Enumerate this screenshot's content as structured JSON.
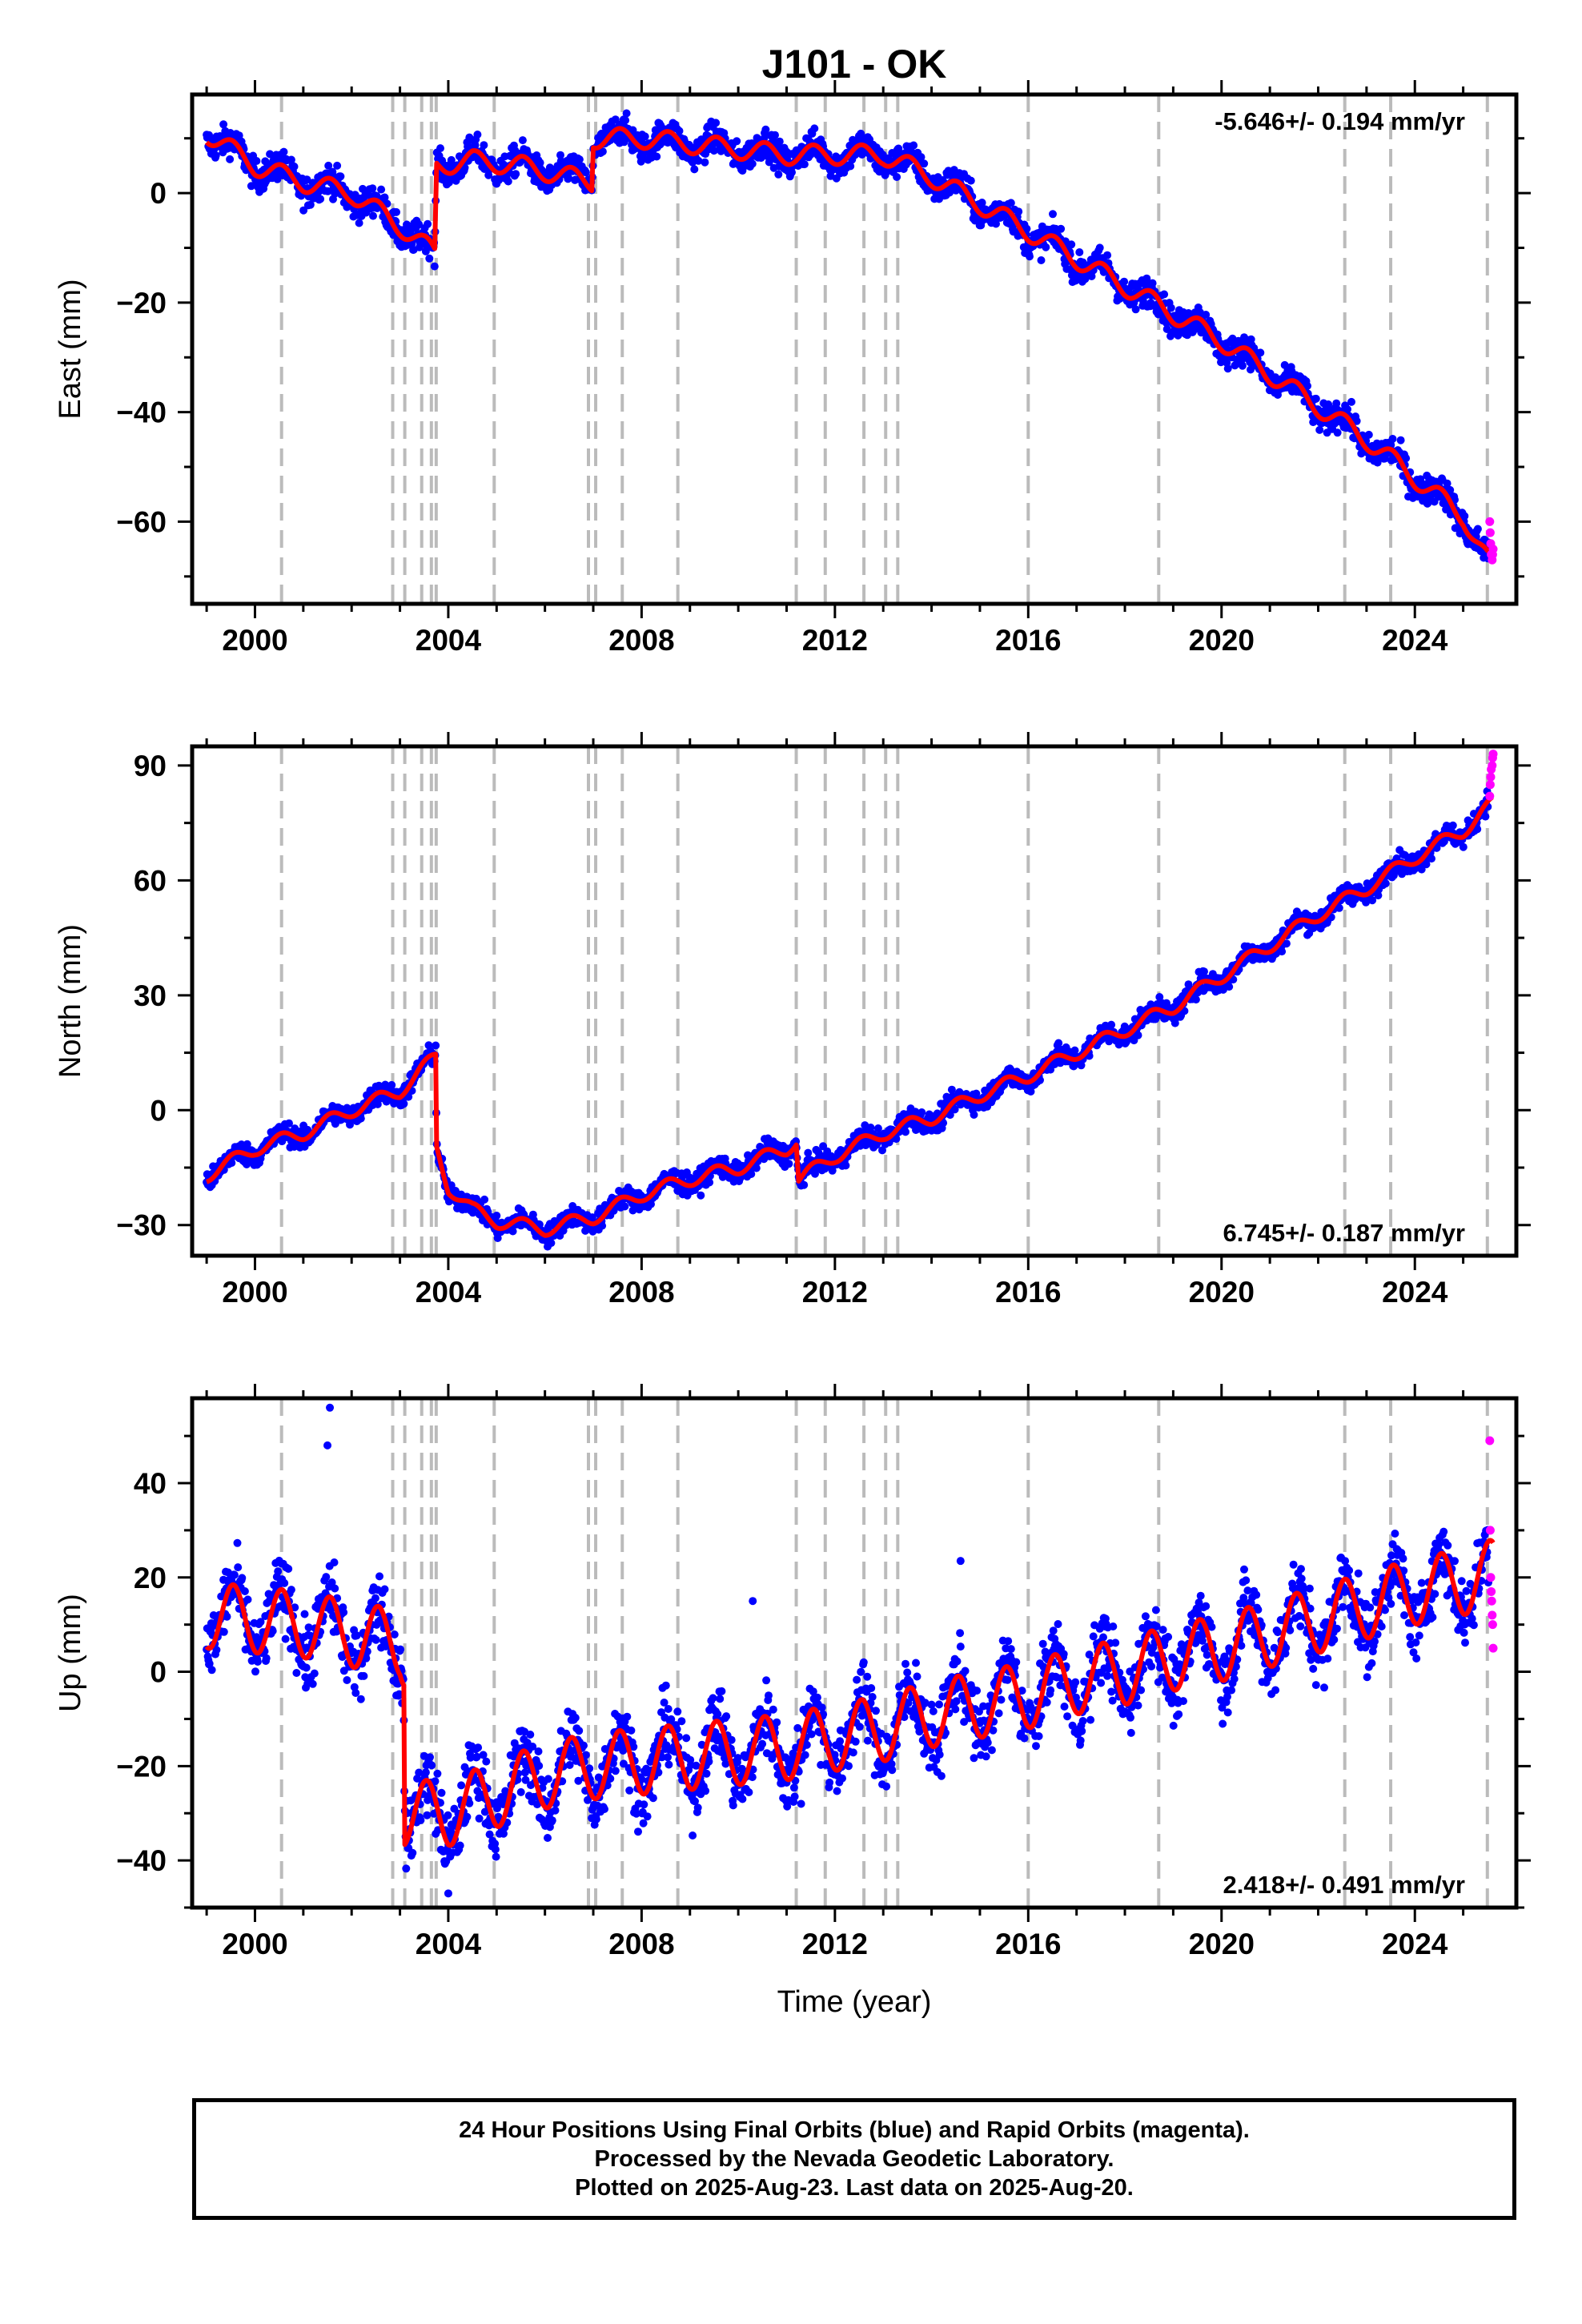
{
  "title": "J101 - OK",
  "footer": {
    "line1": "24 Hour Positions Using Final Orbits (blue) and Rapid Orbits (magenta).",
    "line2": "Processed by the Nevada Geodetic Laboratory.",
    "line3": "Plotted on 2025-Aug-23. Last data on 2025-Aug-20."
  },
  "colors": {
    "final_orbits": "#0000ff",
    "rapid_orbits": "#ff00ff",
    "model_fit": "#ff0000",
    "event_lines": "#bbbbbb"
  },
  "chart_data": [
    {
      "type": "scatter",
      "panel": "east",
      "ylabel": "East (mm)",
      "xlabel": "",
      "xlim": [
        1998.7,
        2026.1
      ],
      "ylim": [
        -75,
        18
      ],
      "yticks": [
        0,
        -20,
        -40,
        -60
      ],
      "xticks": [
        2000,
        2004,
        2008,
        2012,
        2016,
        2020,
        2024
      ],
      "rate_label": "-5.646+/- 0.194 mm/yr",
      "rate_position": "top-right",
      "event_lines": [
        2000.55,
        2002.85,
        2003.1,
        2003.45,
        2003.65,
        2003.75,
        2004.95,
        2006.9,
        2007.05,
        2007.6,
        2008.75,
        2011.2,
        2011.8,
        2012.6,
        2013.05,
        2013.3,
        2016.0,
        2018.7,
        2022.55,
        2023.5,
        2025.5
      ],
      "series": [
        {
          "name": "Final Orbits",
          "style": "points",
          "trend_x": [
            1999.0,
            2000.0,
            2001.0,
            2002.0,
            2003.0,
            2003.72,
            2003.76,
            2004.5,
            2005.5,
            2006.5,
            2006.97,
            2007.0,
            2008.0,
            2009.0,
            2010.0,
            2011.0,
            2012.0,
            2013.0,
            2014.0,
            2015.0,
            2016.0,
            2017.0,
            2018.0,
            2019.0,
            2020.0,
            2021.0,
            2022.0,
            2023.0,
            2024.0,
            2025.0,
            2025.5
          ],
          "trend_y": [
            11,
            5,
            2,
            0,
            -6,
            -11,
            5,
            6,
            5,
            3,
            2,
            10,
            10,
            9,
            8,
            7,
            7,
            7,
            3,
            -2,
            -7,
            -12,
            -17,
            -22,
            -27,
            -33,
            -39,
            -45,
            -52,
            -59,
            -67
          ],
          "spread": 2.6
        },
        {
          "name": "Rapid Orbits",
          "style": "points",
          "x": [
            2025.55,
            2025.56,
            2025.57,
            2025.58,
            2025.6,
            2025.61,
            2025.62
          ],
          "y": [
            -60,
            -62,
            -64,
            -66,
            -67,
            -66,
            -65
          ]
        },
        {
          "name": "Model",
          "style": "line",
          "offsets": [
            {
              "x": 2003.74,
              "dy": 16
            },
            {
              "x": 2006.99,
              "dy": 8
            }
          ],
          "seasonal_amplitude": 1.8
        }
      ]
    },
    {
      "type": "scatter",
      "panel": "north",
      "ylabel": "North (mm)",
      "xlabel": "",
      "xlim": [
        1998.7,
        2026.1
      ],
      "ylim": [
        -38,
        95
      ],
      "yticks": [
        90,
        60,
        30,
        0,
        -30
      ],
      "xticks": [
        2000,
        2004,
        2008,
        2012,
        2016,
        2020,
        2024
      ],
      "rate_label": "6.745+/- 0.187 mm/yr",
      "rate_position": "bottom-right",
      "event_lines": [
        2000.55,
        2002.85,
        2003.1,
        2003.45,
        2003.65,
        2003.75,
        2004.95,
        2006.9,
        2007.05,
        2007.6,
        2008.75,
        2011.2,
        2011.8,
        2012.6,
        2013.05,
        2013.3,
        2016.0,
        2018.7,
        2022.55,
        2023.5,
        2025.5
      ],
      "series": [
        {
          "name": "Final Orbits",
          "style": "points",
          "trend_x": [
            1999.0,
            2000.0,
            2001.0,
            2002.0,
            2003.0,
            2003.74,
            2003.76,
            2004.0,
            2004.5,
            2005.0,
            2006.0,
            2007.0,
            2008.0,
            2009.0,
            2010.0,
            2011.0,
            2011.2,
            2011.25,
            2012.0,
            2013.0,
            2014.0,
            2015.0,
            2016.0,
            2017.0,
            2018.0,
            2019.0,
            2020.0,
            2021.0,
            2022.0,
            2023.0,
            2024.0,
            2025.0,
            2025.6
          ],
          "trend_y": [
            -17,
            -10,
            -6,
            0,
            5,
            14,
            -10,
            -20,
            -26,
            -29,
            -31,
            -28,
            -22,
            -18,
            -15,
            -10,
            -8,
            -18,
            -12,
            -6,
            -2,
            4,
            9,
            15,
            21,
            27,
            35,
            43,
            51,
            58,
            66,
            73,
            80
          ],
          "spread": 2.6
        },
        {
          "name": "Rapid Orbits",
          "style": "points",
          "x": [
            2025.55,
            2025.56,
            2025.57,
            2025.58,
            2025.6,
            2025.61,
            2025.62
          ],
          "y": [
            82,
            85,
            87,
            89,
            90,
            92,
            93
          ]
        },
        {
          "name": "Model",
          "style": "line",
          "offsets": [
            {
              "x": 2003.75,
              "dy": -24
            },
            {
              "x": 2011.22,
              "dy": -10
            }
          ],
          "seasonal_amplitude": 1.8
        }
      ]
    },
    {
      "type": "scatter",
      "panel": "up",
      "ylabel": "Up (mm)",
      "xlabel": "Time (year)",
      "xlim": [
        1998.7,
        2026.1
      ],
      "ylim": [
        -50,
        58
      ],
      "yticks": [
        40,
        20,
        0,
        -20,
        -40
      ],
      "xticks": [
        2000,
        2004,
        2008,
        2012,
        2016,
        2020,
        2024
      ],
      "rate_label": "2.418+/- 0.491 mm/yr",
      "rate_position": "bottom-right",
      "event_lines": [
        2000.55,
        2002.85,
        2003.1,
        2003.45,
        2003.65,
        2003.75,
        2004.95,
        2006.9,
        2007.05,
        2007.6,
        2008.75,
        2011.2,
        2011.8,
        2012.6,
        2013.05,
        2013.3,
        2016.0,
        2018.7,
        2022.55,
        2023.5,
        2025.5
      ],
      "series": [
        {
          "name": "Final Orbits",
          "style": "points",
          "trend_x": [
            1999.0,
            2000.0,
            2001.0,
            2002.0,
            2003.0,
            2003.08,
            2003.1,
            2004.0,
            2005.0,
            2006.0,
            2007.0,
            2008.0,
            2009.0,
            2010.0,
            2011.0,
            2012.0,
            2013.0,
            2014.0,
            2015.0,
            2016.0,
            2017.0,
            2018.0,
            2019.0,
            2020.0,
            2021.0,
            2022.0,
            2023.0,
            2024.0,
            2025.0,
            2025.6
          ],
          "trend_y": [
            12,
            11,
            10,
            8,
            6,
            4,
            -30,
            -30,
            -26,
            -22,
            -20,
            -19,
            -18,
            -17,
            -16,
            -14,
            -12,
            -9,
            -7,
            -5,
            -2,
            0,
            3,
            5,
            8,
            11,
            14,
            17,
            19,
            21
          ],
          "spread": 7
        },
        {
          "name": "Rapid Orbits",
          "style": "points",
          "x": [
            2025.55,
            2025.56,
            2025.57,
            2025.58,
            2025.59,
            2025.6,
            2025.61,
            2025.62
          ],
          "y": [
            49,
            30,
            20,
            17,
            15,
            12,
            10,
            5
          ]
        },
        {
          "name": "Model",
          "style": "line",
          "offsets": [
            {
              "x": 2003.09,
              "dy": -34
            }
          ],
          "seasonal_amplitude": 7
        }
      ]
    }
  ]
}
